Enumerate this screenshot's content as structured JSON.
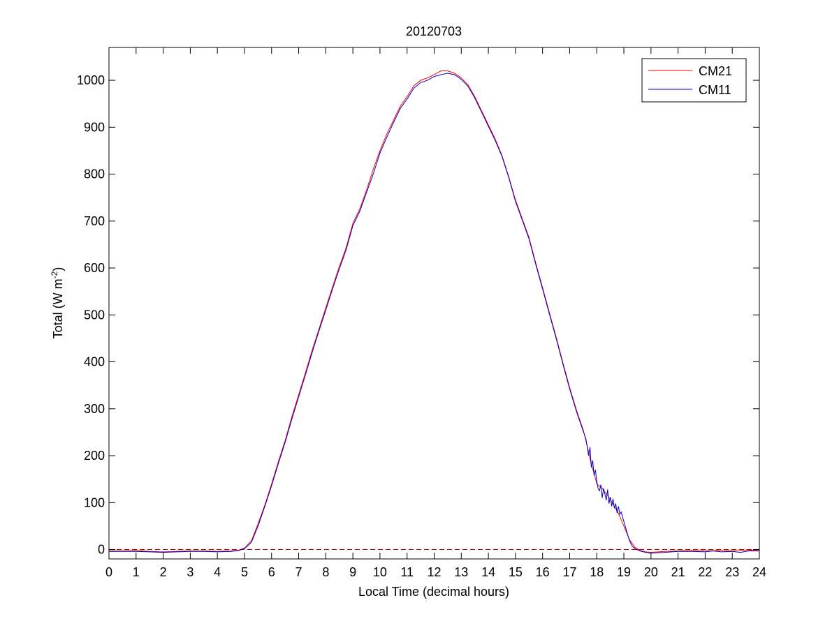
{
  "chart_data": {
    "type": "line",
    "title": "20120703",
    "xlabel": "Local Time (decimal hours)",
    "ylabel": "Total (W m",
    "ylabel_exponent": "-2",
    "ylabel_close": ")",
    "xlim": [
      0,
      24
    ],
    "ylim": [
      -20,
      1070
    ],
    "xticks": [
      0,
      1,
      2,
      3,
      4,
      5,
      6,
      7,
      8,
      9,
      10,
      11,
      12,
      13,
      14,
      15,
      16,
      17,
      18,
      19,
      20,
      21,
      22,
      23,
      24
    ],
    "yticks": [
      0,
      100,
      200,
      300,
      400,
      500,
      600,
      700,
      800,
      900,
      1000
    ],
    "grid": false,
    "legend_position": "top-right",
    "reference_line": {
      "y": 0,
      "color": "#cc0000",
      "style": "dashed"
    },
    "series": [
      {
        "name": "CM21",
        "color": "#ff0000",
        "points": [
          [
            0,
            -3
          ],
          [
            0.5,
            -3
          ],
          [
            1,
            -2
          ],
          [
            1.5,
            -4
          ],
          [
            2,
            -5
          ],
          [
            2.5,
            -4
          ],
          [
            3,
            -3
          ],
          [
            3.5,
            -3
          ],
          [
            4,
            -4
          ],
          [
            4.5,
            -3
          ],
          [
            4.8,
            -1
          ],
          [
            5,
            3
          ],
          [
            5.25,
            18
          ],
          [
            5.5,
            55
          ],
          [
            5.75,
            95
          ],
          [
            6,
            140
          ],
          [
            6.25,
            187
          ],
          [
            6.5,
            232
          ],
          [
            6.75,
            283
          ],
          [
            7,
            330
          ],
          [
            7.25,
            377
          ],
          [
            7.5,
            425
          ],
          [
            7.75,
            470
          ],
          [
            8,
            515
          ],
          [
            8.25,
            560
          ],
          [
            8.5,
            603
          ],
          [
            8.75,
            643
          ],
          [
            9,
            695
          ],
          [
            9.25,
            725
          ],
          [
            9.5,
            765
          ],
          [
            9.75,
            810
          ],
          [
            10,
            850
          ],
          [
            10.25,
            885
          ],
          [
            10.5,
            915
          ],
          [
            10.75,
            945
          ],
          [
            11,
            965
          ],
          [
            11.25,
            988
          ],
          [
            11.5,
            1000
          ],
          [
            11.75,
            1005
          ],
          [
            12,
            1012
          ],
          [
            12.25,
            1020
          ],
          [
            12.5,
            1020
          ],
          [
            12.75,
            1015
          ],
          [
            13,
            1005
          ],
          [
            13.25,
            990
          ],
          [
            13.5,
            965
          ],
          [
            13.75,
            935
          ],
          [
            14,
            905
          ],
          [
            14.25,
            875
          ],
          [
            14.5,
            840
          ],
          [
            14.75,
            795
          ],
          [
            15,
            745
          ],
          [
            15.25,
            705
          ],
          [
            15.5,
            665
          ],
          [
            15.75,
            610
          ],
          [
            16,
            558
          ],
          [
            16.25,
            505
          ],
          [
            16.5,
            453
          ],
          [
            16.75,
            398
          ],
          [
            17,
            345
          ],
          [
            17.25,
            297
          ],
          [
            17.5,
            255
          ],
          [
            17.6,
            232
          ],
          [
            17.7,
            208
          ],
          [
            17.8,
            180
          ],
          [
            17.9,
            163
          ],
          [
            18,
            140
          ],
          [
            18.2,
            130
          ],
          [
            18.4,
            115
          ],
          [
            18.6,
            97
          ],
          [
            18.8,
            77
          ],
          [
            19,
            50
          ],
          [
            19.2,
            22
          ],
          [
            19.4,
            5
          ],
          [
            19.6,
            -2
          ],
          [
            19.8,
            -5
          ],
          [
            20,
            -6
          ],
          [
            20.5,
            -4
          ],
          [
            21,
            -3
          ],
          [
            21.5,
            -2
          ],
          [
            22,
            -3
          ],
          [
            22.5,
            -2
          ],
          [
            23,
            -3
          ],
          [
            23.5,
            -1
          ],
          [
            24,
            -2
          ]
        ]
      },
      {
        "name": "CM11",
        "color": "#0000cc",
        "points": [
          [
            0,
            -4
          ],
          [
            0.5,
            -4
          ],
          [
            1,
            -4
          ],
          [
            1.5,
            -5
          ],
          [
            2,
            -6
          ],
          [
            2.5,
            -5
          ],
          [
            3,
            -4
          ],
          [
            3.5,
            -4
          ],
          [
            4,
            -5
          ],
          [
            4.5,
            -4
          ],
          [
            4.8,
            -2
          ],
          [
            5,
            2
          ],
          [
            5.25,
            15
          ],
          [
            5.5,
            50
          ],
          [
            5.75,
            92
          ],
          [
            6,
            136
          ],
          [
            6.25,
            183
          ],
          [
            6.5,
            228
          ],
          [
            6.75,
            278
          ],
          [
            7,
            325
          ],
          [
            7.25,
            372
          ],
          [
            7.5,
            420
          ],
          [
            7.75,
            466
          ],
          [
            8,
            510
          ],
          [
            8.25,
            555
          ],
          [
            8.5,
            598
          ],
          [
            8.75,
            638
          ],
          [
            9,
            690
          ],
          [
            9.25,
            720
          ],
          [
            9.5,
            760
          ],
          [
            9.75,
            800
          ],
          [
            10,
            845
          ],
          [
            10.25,
            878
          ],
          [
            10.5,
            910
          ],
          [
            10.75,
            940
          ],
          [
            11,
            960
          ],
          [
            11.25,
            983
          ],
          [
            11.5,
            995
          ],
          [
            11.75,
            1000
          ],
          [
            12,
            1008
          ],
          [
            12.25,
            1012
          ],
          [
            12.5,
            1015
          ],
          [
            12.75,
            1012
          ],
          [
            13,
            1002
          ],
          [
            13.25,
            987
          ],
          [
            13.5,
            962
          ],
          [
            13.75,
            932
          ],
          [
            14,
            902
          ],
          [
            14.25,
            872
          ],
          [
            14.5,
            838
          ],
          [
            14.75,
            793
          ],
          [
            15,
            742
          ],
          [
            15.25,
            702
          ],
          [
            15.5,
            662
          ],
          [
            15.75,
            607
          ],
          [
            16,
            555
          ],
          [
            16.25,
            502
          ],
          [
            16.5,
            450
          ],
          [
            16.75,
            395
          ],
          [
            17,
            342
          ],
          [
            17.25,
            294
          ],
          [
            17.5,
            252
          ],
          [
            17.6,
            236
          ],
          [
            17.7,
            200
          ],
          [
            17.75,
            218
          ],
          [
            17.8,
            175
          ],
          [
            17.85,
            190
          ],
          [
            17.9,
            158
          ],
          [
            17.95,
            170
          ],
          [
            18,
            145
          ],
          [
            18.05,
            130
          ],
          [
            18.1,
            125
          ],
          [
            18.15,
            138
          ],
          [
            18.2,
            110
          ],
          [
            18.25,
            130
          ],
          [
            18.3,
            118
          ],
          [
            18.35,
            105
          ],
          [
            18.4,
            128
          ],
          [
            18.45,
            98
          ],
          [
            18.5,
            112
          ],
          [
            18.55,
            92
          ],
          [
            18.6,
            108
          ],
          [
            18.65,
            88
          ],
          [
            18.7,
            98
          ],
          [
            18.75,
            78
          ],
          [
            18.8,
            92
          ],
          [
            18.85,
            75
          ],
          [
            18.9,
            80
          ],
          [
            19,
            60
          ],
          [
            19.1,
            40
          ],
          [
            19.2,
            20
          ],
          [
            19.3,
            8
          ],
          [
            19.4,
            2
          ],
          [
            19.6,
            -3
          ],
          [
            19.8,
            -6
          ],
          [
            20,
            -8
          ],
          [
            20.2,
            -7
          ],
          [
            20.5,
            -6
          ],
          [
            21,
            -4
          ],
          [
            21.5,
            -4
          ],
          [
            22,
            -5
          ],
          [
            22.3,
            -3
          ],
          [
            22.6,
            -5
          ],
          [
            23,
            -4
          ],
          [
            23.3,
            -6
          ],
          [
            23.6,
            -3
          ],
          [
            24,
            -3
          ]
        ]
      }
    ]
  }
}
